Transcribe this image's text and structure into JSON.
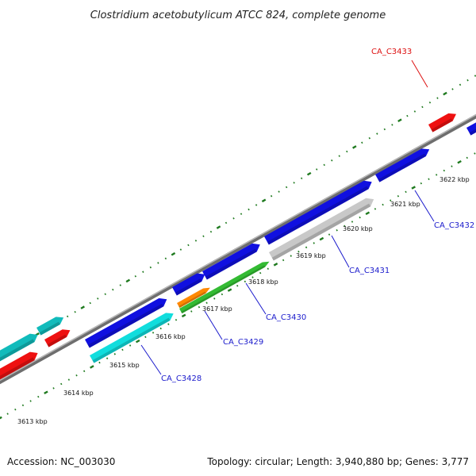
{
  "title": "Clostridium acetobutylicum ATCC 824, complete genome",
  "footer": {
    "accession": "Accession: NC_003030",
    "summary": "Topology: circular; Length: 3,940,880 bp; Genes: 3,777"
  },
  "colors": {
    "backbone_dark": "#6e6e6e",
    "backbone_light": "#b8b8b8",
    "ruler": "#1f7a1f",
    "forward_gene": "#1010e0",
    "forward_label": "#1a1acc",
    "rna_gene": "#ee1111",
    "rna_label": "#dd1111"
  },
  "ruler_ticks": [
    "3613 kbp",
    "3614 kbp",
    "3615 kbp",
    "3616 kbp",
    "3617 kbp",
    "3618 kbp",
    "3619 kbp",
    "3620 kbp",
    "3621 kbp",
    "3622 kbp"
  ],
  "gene_labels": [
    {
      "name": "CA_C3428",
      "color": "#1a1acc"
    },
    {
      "name": "CA_C3429",
      "color": "#1a1acc"
    },
    {
      "name": "CA_C3430",
      "color": "#1a1acc"
    },
    {
      "name": "CA_C3431",
      "color": "#1a1acc"
    },
    {
      "name": "CA_C3432",
      "color": "#1a1acc"
    },
    {
      "name": "CA_C3433",
      "color": "#dd1111"
    }
  ],
  "feature_colors": {
    "cds_forward": "#1010e0",
    "cds_cyan": "#11dddd",
    "cds_teal": "#11bbbb",
    "cds_green": "#33bb33",
    "cds_orange": "#ff8800",
    "cds_grey": "#c8c8c8",
    "rna": "#ee1111"
  }
}
